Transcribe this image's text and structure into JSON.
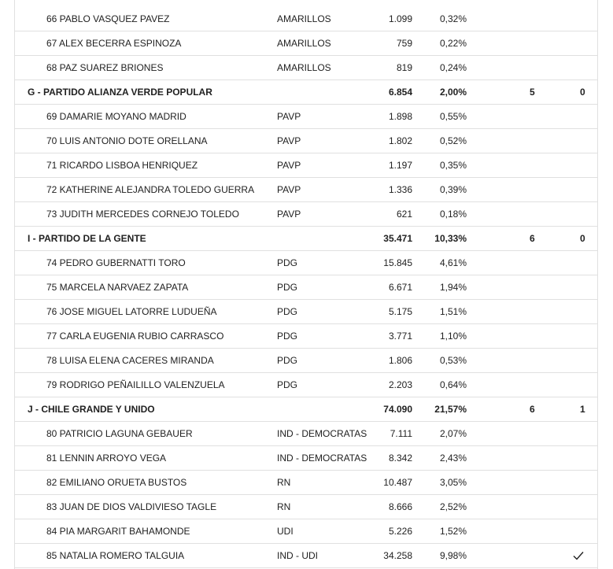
{
  "table": {
    "rows": [
      {
        "type": "candidate",
        "name": "66 PABLO VASQUEZ PAVEZ",
        "pact": "AMARILLOS",
        "votes": "1.099",
        "percent": "0,32%"
      },
      {
        "type": "candidate",
        "name": "67 ALEX BECERRA ESPINOZA",
        "pact": "AMARILLOS",
        "votes": "759",
        "percent": "0,22%"
      },
      {
        "type": "candidate",
        "name": "68 PAZ SUAREZ BRIONES",
        "pact": "AMARILLOS",
        "votes": "819",
        "percent": "0,24%"
      },
      {
        "type": "party",
        "name": "G - PARTIDO ALIANZA VERDE POPULAR",
        "votes": "6.854",
        "percent": "2,00%",
        "candidates": "5",
        "elected": "0"
      },
      {
        "type": "candidate",
        "name": "69 DAMARIE MOYANO MADRID",
        "pact": "PAVP",
        "votes": "1.898",
        "percent": "0,55%"
      },
      {
        "type": "candidate",
        "name": "70 LUIS ANTONIO DOTE ORELLANA",
        "pact": "PAVP",
        "votes": "1.802",
        "percent": "0,52%"
      },
      {
        "type": "candidate",
        "name": "71 RICARDO LISBOA HENRIQUEZ",
        "pact": "PAVP",
        "votes": "1.197",
        "percent": "0,35%"
      },
      {
        "type": "candidate",
        "name": "72 KATHERINE ALEJANDRA TOLEDO GUERRA",
        "pact": "PAVP",
        "votes": "1.336",
        "percent": "0,39%"
      },
      {
        "type": "candidate",
        "name": "73 JUDITH MERCEDES CORNEJO TOLEDO",
        "pact": "PAVP",
        "votes": "621",
        "percent": "0,18%"
      },
      {
        "type": "party",
        "name": "I - PARTIDO DE LA GENTE",
        "votes": "35.471",
        "percent": "10,33%",
        "candidates": "6",
        "elected": "0"
      },
      {
        "type": "candidate",
        "name": "74 PEDRO GUBERNATTI TORO",
        "pact": "PDG",
        "votes": "15.845",
        "percent": "4,61%"
      },
      {
        "type": "candidate",
        "name": "75 MARCELA NARVAEZ ZAPATA",
        "pact": "PDG",
        "votes": "6.671",
        "percent": "1,94%"
      },
      {
        "type": "candidate",
        "name": "76 JOSE MIGUEL LATORRE LUDUEÑA",
        "pact": "PDG",
        "votes": "5.175",
        "percent": "1,51%"
      },
      {
        "type": "candidate",
        "name": "77 CARLA EUGENIA RUBIO CARRASCO",
        "pact": "PDG",
        "votes": "3.771",
        "percent": "1,10%"
      },
      {
        "type": "candidate",
        "name": "78 LUISA ELENA CACERES MIRANDA",
        "pact": "PDG",
        "votes": "1.806",
        "percent": "0,53%"
      },
      {
        "type": "candidate",
        "name": "79 RODRIGO PEÑAILILLO VALENZUELA",
        "pact": "PDG",
        "votes": "2.203",
        "percent": "0,64%"
      },
      {
        "type": "party",
        "name": "J - CHILE GRANDE Y UNIDO",
        "votes": "74.090",
        "percent": "21,57%",
        "candidates": "6",
        "elected": "1"
      },
      {
        "type": "candidate",
        "name": "80 PATRICIO LAGUNA GEBAUER",
        "pact": "IND - DEMOCRATAS",
        "votes": "7.111",
        "percent": "2,07%"
      },
      {
        "type": "candidate",
        "name": "81 LENNIN ARROYO VEGA",
        "pact": "IND - DEMOCRATAS",
        "votes": "8.342",
        "percent": "2,43%"
      },
      {
        "type": "candidate",
        "name": "82 EMILIANO ORUETA BUSTOS",
        "pact": "RN",
        "votes": "10.487",
        "percent": "3,05%"
      },
      {
        "type": "candidate",
        "name": "83 JUAN DE DIOS VALDIVIESO TAGLE",
        "pact": "RN",
        "votes": "8.666",
        "percent": "2,52%"
      },
      {
        "type": "candidate",
        "name": "84 PIA MARGARIT BAHAMONDE",
        "pact": "UDI",
        "votes": "5.226",
        "percent": "1,52%"
      },
      {
        "type": "candidate",
        "name": "85 NATALIA ROMERO TALGUIA",
        "pact": "IND - UDI",
        "votes": "34.258",
        "percent": "9,98%",
        "is_elected": true
      }
    ]
  }
}
